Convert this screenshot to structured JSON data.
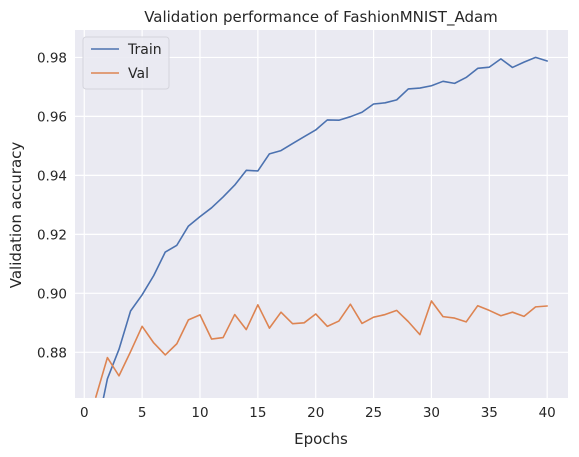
{
  "chart_data": {
    "type": "line",
    "title": "Validation performance of FashionMNIST_Adam",
    "xlabel": "Epochs",
    "ylabel": "Validation accuracy",
    "xlim": [
      -0.8,
      41.8
    ],
    "ylim": [
      0.8645,
      0.9893
    ],
    "xticks": [
      "0",
      "5",
      "10",
      "15",
      "20",
      "25",
      "30",
      "35",
      "40"
    ],
    "yticks": [
      "0.88",
      "0.90",
      "0.92",
      "0.94",
      "0.96",
      "0.98"
    ],
    "grid": true,
    "legend": "top-left",
    "x": [
      1,
      2,
      3,
      4,
      5,
      6,
      7,
      8,
      9,
      10,
      11,
      12,
      13,
      14,
      15,
      16,
      17,
      18,
      19,
      20,
      21,
      22,
      23,
      24,
      25,
      26,
      27,
      28,
      29,
      30,
      31,
      32,
      33,
      34,
      35,
      36,
      37,
      38,
      39,
      40
    ],
    "series": [
      {
        "name": "Train",
        "color": "#4c72b0",
        "values": [
          0.852,
          0.871,
          0.881,
          0.894,
          0.8995,
          0.906,
          0.914,
          0.9163,
          0.9228,
          0.926,
          0.929,
          0.9327,
          0.9367,
          0.9417,
          0.9415,
          0.9473,
          0.9484,
          0.9508,
          0.9531,
          0.9554,
          0.9588,
          0.9587,
          0.9599,
          0.9614,
          0.9642,
          0.9646,
          0.9656,
          0.9693,
          0.9696,
          0.9704,
          0.9719,
          0.9712,
          0.9732,
          0.9763,
          0.9767,
          0.9795,
          0.9766,
          0.9784,
          0.98,
          0.9788
        ]
      },
      {
        "name": "Val",
        "color": "#dd8452",
        "values": [
          0.8648,
          0.8782,
          0.872,
          0.8802,
          0.8888,
          0.8832,
          0.8791,
          0.8829,
          0.891,
          0.8927,
          0.8845,
          0.885,
          0.8928,
          0.8877,
          0.8961,
          0.8882,
          0.8936,
          0.8897,
          0.89,
          0.893,
          0.8888,
          0.8906,
          0.8963,
          0.8898,
          0.8919,
          0.8928,
          0.8942,
          0.8904,
          0.886,
          0.8974,
          0.8921,
          0.8916,
          0.8903,
          0.8958,
          0.8942,
          0.8924,
          0.8936,
          0.8922,
          0.8954,
          0.8957
        ]
      }
    ]
  }
}
